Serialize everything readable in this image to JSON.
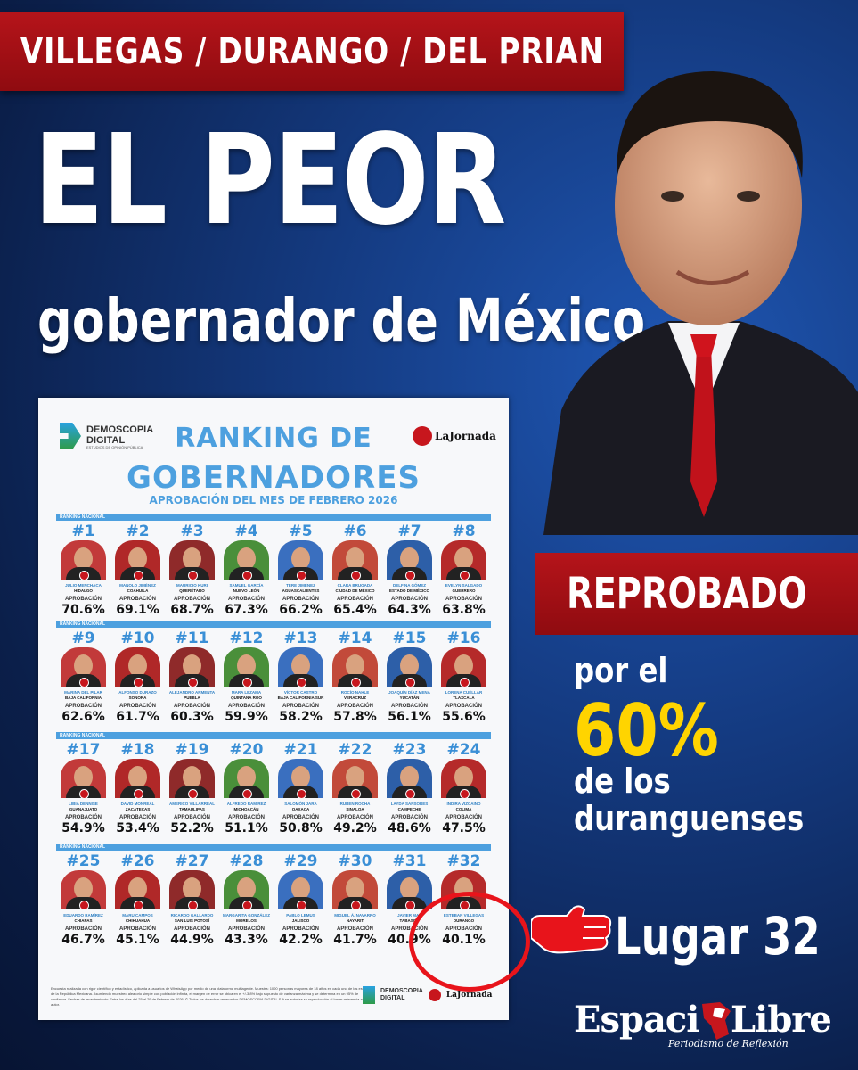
{
  "banner_top": "VILLEGAS / DURANGO / DEL PRIAN",
  "headline": "EL PEOR",
  "subheadline": "gobernador de México",
  "right_banner": "REPROBADO",
  "side_line1": "por el",
  "side_pct": "60%",
  "side_line2": "de los",
  "side_line3": "duranguenses",
  "lugar": "Lugar 32",
  "brand": {
    "part1": "Espaci",
    "part2": "Libre",
    "tagline": "Periodismo de Reflexión"
  },
  "colors": {
    "red": "#b5141a",
    "blue_bg": "#143a80",
    "yellow": "#ffd400",
    "card_blue": "#4da0df"
  },
  "card": {
    "logo_left_line1": "DEMOSCOPIA",
    "logo_left_line2": "DIGITAL",
    "logo_left_line3": "ESTUDIOS DE OPINIÓN PÚBLICA",
    "logo_right": "LaJornada",
    "title1": "RANKING DE",
    "title2": "GOBERNADORES",
    "subtitle": "APROBACIÓN DEL MES DE FEBRERO 2026",
    "section_label": "RANKING NACIONAL",
    "approval_label": "APROBACIÓN",
    "footnote": "Encuesta realizada con rigor científico y estadístico, aplicada a usuarios de WhatsApp por medio de una plataforma multiagente. Muestra: 1000 personas mayores de 18 años en cada uno de los estados de la República Mexicana. Asumiendo muestreo aleatorio simple con población infinita, el margen de error se ubica en el +/-3.8% bajo supuesto de varianza máxima y se determina en un 95% de confianza. Fechas de levantamiento: Entre los días del 25 al 29 de Febrero de 2026. © Todos los derechos reservados DEMOSCOPIA DIGITAL S.A se autoriza su reproducción al hacer referencia al autor.",
    "governors": [
      {
        "rank": "#1",
        "name": "JULIO MENCHACA",
        "state": "HIDALGO",
        "approval": "70.6%"
      },
      {
        "rank": "#2",
        "name": "MANOLO JIMÉNEZ",
        "state": "COAHUILA",
        "approval": "69.1%"
      },
      {
        "rank": "#3",
        "name": "MAURICIO KURI",
        "state": "QUERÉTARO",
        "approval": "68.7%"
      },
      {
        "rank": "#4",
        "name": "SAMUEL GARCÍA",
        "state": "NUEVO LEÓN",
        "approval": "67.3%"
      },
      {
        "rank": "#5",
        "name": "TERE JIMÉNEZ",
        "state": "AGUASCALIENTES",
        "approval": "66.2%"
      },
      {
        "rank": "#6",
        "name": "CLARA BRUGADA",
        "state": "CIUDAD DE MÉXICO",
        "approval": "65.4%"
      },
      {
        "rank": "#7",
        "name": "DELFINA GÓMEZ",
        "state": "ESTADO DE MÉXICO",
        "approval": "64.3%"
      },
      {
        "rank": "#8",
        "name": "EVELYN SALGADO",
        "state": "GUERRERO",
        "approval": "63.8%"
      },
      {
        "rank": "#9",
        "name": "MARINA DEL PILAR",
        "state": "BAJA CALIFORNIA",
        "approval": "62.6%"
      },
      {
        "rank": "#10",
        "name": "ALFONSO DURAZO",
        "state": "SONORA",
        "approval": "61.7%"
      },
      {
        "rank": "#11",
        "name": "ALEJANDRO ARMENTA",
        "state": "PUEBLA",
        "approval": "60.3%"
      },
      {
        "rank": "#12",
        "name": "MARA LEZAMA",
        "state": "QUINTANA ROO",
        "approval": "59.9%"
      },
      {
        "rank": "#13",
        "name": "VÍCTOR CASTRO",
        "state": "BAJA CALIFORNIA SUR",
        "approval": "58.2%"
      },
      {
        "rank": "#14",
        "name": "ROCÍO NAHLE",
        "state": "VERACRUZ",
        "approval": "57.8%"
      },
      {
        "rank": "#15",
        "name": "JOAQUÍN DÍAZ MENA",
        "state": "YUCATÁN",
        "approval": "56.1%"
      },
      {
        "rank": "#16",
        "name": "LORENA CUÉLLAR",
        "state": "TLAXCALA",
        "approval": "55.6%"
      },
      {
        "rank": "#17",
        "name": "LIBIA DENNISE",
        "state": "GUANAJUATO",
        "approval": "54.9%"
      },
      {
        "rank": "#18",
        "name": "DAVID MONREAL",
        "state": "ZACATECAS",
        "approval": "53.4%"
      },
      {
        "rank": "#19",
        "name": "AMÉRICO VILLARREAL",
        "state": "TAMAULIPAS",
        "approval": "52.2%"
      },
      {
        "rank": "#20",
        "name": "ALFREDO RAMÍREZ",
        "state": "MICHOACÁN",
        "approval": "51.1%"
      },
      {
        "rank": "#21",
        "name": "SALOMÓN JARA",
        "state": "OAXACA",
        "approval": "50.8%"
      },
      {
        "rank": "#22",
        "name": "RUBÉN ROCHA",
        "state": "SINALOA",
        "approval": "49.2%"
      },
      {
        "rank": "#23",
        "name": "LAYDA SANSORES",
        "state": "CAMPECHE",
        "approval": "48.6%"
      },
      {
        "rank": "#24",
        "name": "INDIRA VIZCAÍNO",
        "state": "COLIMA",
        "approval": "47.5%"
      },
      {
        "rank": "#25",
        "name": "EDUARDO RAMÍREZ",
        "state": "CHIAPAS",
        "approval": "46.7%"
      },
      {
        "rank": "#26",
        "name": "MARU CAMPOS",
        "state": "CHIHUAHUA",
        "approval": "45.1%"
      },
      {
        "rank": "#27",
        "name": "RICARDO GALLARDO",
        "state": "SAN LUIS POTOSÍ",
        "approval": "44.9%"
      },
      {
        "rank": "#28",
        "name": "MARGARITA GONZÁLEZ",
        "state": "MORELOS",
        "approval": "43.3%"
      },
      {
        "rank": "#29",
        "name": "PABLO LEMUS",
        "state": "JALISCO",
        "approval": "42.2%"
      },
      {
        "rank": "#30",
        "name": "MIGUEL Á. NAVARRO",
        "state": "NAYARIT",
        "approval": "41.7%"
      },
      {
        "rank": "#31",
        "name": "JAVIER MAY",
        "state": "TABASCO",
        "approval": "40.9%"
      },
      {
        "rank": "#32",
        "name": "ESTEBAN VILLEGAS",
        "state": "DURANGO",
        "approval": "40.1%"
      }
    ]
  }
}
